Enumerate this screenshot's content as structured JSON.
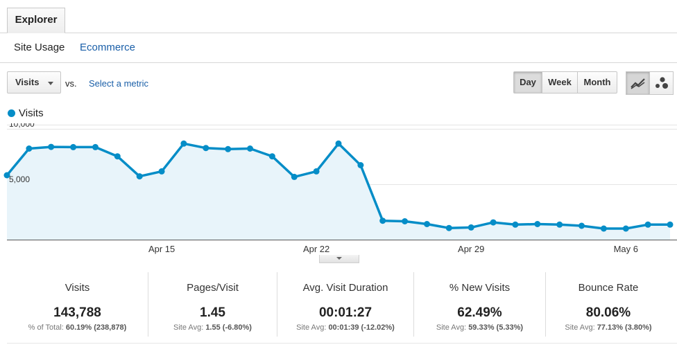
{
  "tabs": {
    "explorer": "Explorer"
  },
  "subtabs": {
    "site_usage": "Site Usage",
    "ecommerce": "Ecommerce"
  },
  "toolbar": {
    "metric": "Visits",
    "vs": "vs.",
    "select_metric": "Select a metric",
    "day": "Day",
    "week": "Week",
    "month": "Month",
    "active_range": "Day",
    "active_view": "line-chart"
  },
  "colors": {
    "series": "#058dc7",
    "area_fill": "#e8f4fa",
    "link": "#1a5fa8"
  },
  "chart_data": {
    "type": "area",
    "series": [
      {
        "name": "Visits",
        "values": [
          5800,
          8200,
          8350,
          8330,
          8330,
          7500,
          5700,
          6150,
          8650,
          8250,
          8150,
          8200,
          7500,
          5650,
          6150,
          8650,
          6700,
          1700,
          1650,
          1400,
          1050,
          1100,
          1550,
          1350,
          1400,
          1350,
          1250,
          1000,
          1000,
          1350,
          1350
        ]
      }
    ],
    "x_labels": [
      {
        "index": 7,
        "label": "Apr 15"
      },
      {
        "index": 14,
        "label": "Apr 22"
      },
      {
        "index": 21,
        "label": "Apr 29"
      },
      {
        "index": 28,
        "label": "May 6"
      }
    ],
    "y_ticks": [
      {
        "value": 10000,
        "label": "10,000"
      },
      {
        "value": 5000,
        "label": "5,000"
      }
    ],
    "ylim": [
      0,
      10000
    ],
    "grid": true,
    "legend": "top-left"
  },
  "stats": [
    {
      "title": "Visits",
      "value": "143,788",
      "sub_label": "% of Total:",
      "sub_value": "60.19% (238,878)"
    },
    {
      "title": "Pages/Visit",
      "value": "1.45",
      "sub_label": "Site Avg:",
      "sub_value": "1.55 (-6.80%)"
    },
    {
      "title": "Avg. Visit Duration",
      "value": "00:01:27",
      "sub_label": "Site Avg:",
      "sub_value": "00:01:39 (-12.02%)"
    },
    {
      "title": "% New Visits",
      "value": "62.49%",
      "sub_label": "Site Avg:",
      "sub_value": "59.33% (5.33%)"
    },
    {
      "title": "Bounce Rate",
      "value": "80.06%",
      "sub_label": "Site Avg:",
      "sub_value": "77.13% (3.80%)"
    }
  ]
}
